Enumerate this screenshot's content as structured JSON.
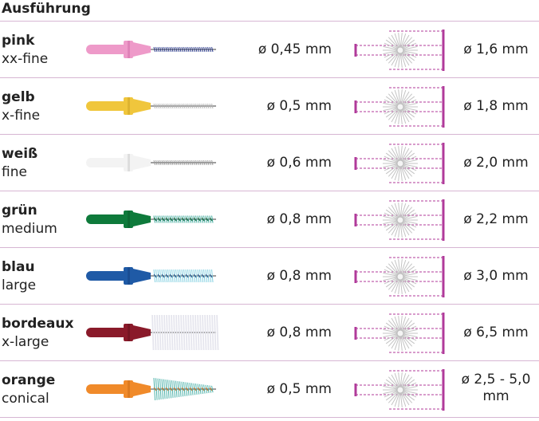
{
  "header": {
    "title": "Ausführung"
  },
  "colors": {
    "rule": "#d7b6d3",
    "diagram_magenta": "#b03a9a"
  },
  "rows": [
    {
      "name": "pink",
      "size": "xx-fine",
      "diameter": "ø 0,45 mm",
      "wire": "ø 1,6 mm",
      "handle": "#ee9ac9",
      "handle_dark": "#d06aa8",
      "bristle": "#2a3a8c",
      "bristle_type": "fine"
    },
    {
      "name": "gelb",
      "size": "x-fine",
      "diameter": "ø 0,5 mm",
      "wire": "ø 1,8 mm",
      "handle": "#f0c63c",
      "handle_dark": "#caa023",
      "bristle": "#b4b4b4",
      "bristle_type": "fine"
    },
    {
      "name": "weiß",
      "size": "fine",
      "diameter": "ø 0,6 mm",
      "wire": "ø 2,0 mm",
      "handle": "#f3f3f3",
      "handle_dark": "#c8c8c8",
      "bristle": "#9a9a9a",
      "bristle_type": "fine"
    },
    {
      "name": "grün",
      "size": "medium",
      "diameter": "ø 0,8 mm",
      "wire": "ø 2,2 mm",
      "handle": "#0e7a3b",
      "handle_dark": "#085a2a",
      "bristle": "#3aa89a",
      "bristle_type": "medium"
    },
    {
      "name": "blau",
      "size": "large",
      "diameter": "ø 0,8 mm",
      "wire": "ø 3,0 mm",
      "handle": "#1f5aa6",
      "handle_dark": "#134080",
      "bristle": "#7fcfe0",
      "bristle_type": "large"
    },
    {
      "name": "bordeaux",
      "size": "x-large",
      "diameter": "ø 0,8 mm",
      "wire": "ø 6,5 mm",
      "handle": "#8a1a2a",
      "handle_dark": "#62101c",
      "bristle": "#e6e6ee",
      "bristle_type": "xlarge"
    },
    {
      "name": "orange",
      "size": "conical",
      "diameter": "ø 0,5 mm",
      "wire_lines": [
        "ø 2,5 - 5,0",
        "mm"
      ],
      "handle": "#f08a2a",
      "handle_dark": "#c86a16",
      "bristle": "#4ab0a8",
      "bristle_type": "conical"
    }
  ]
}
